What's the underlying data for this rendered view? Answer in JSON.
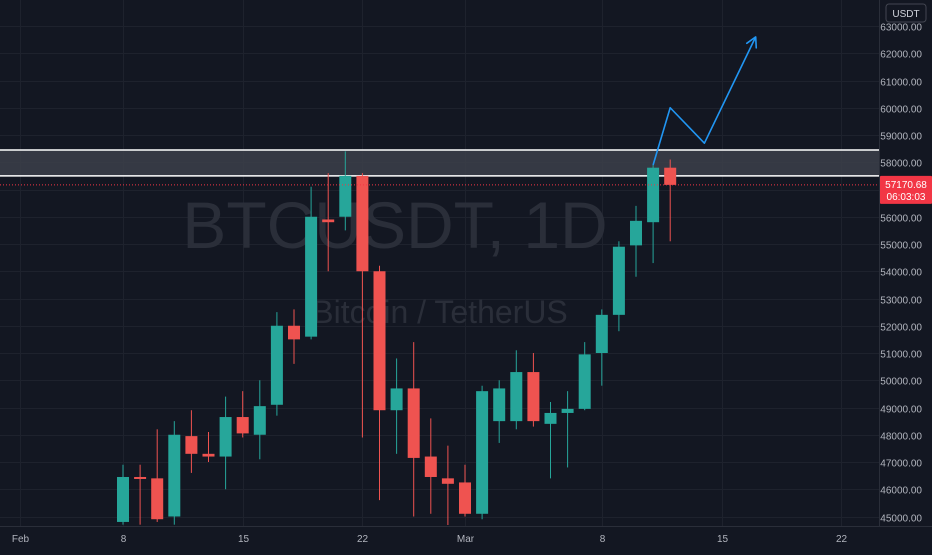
{
  "chart_data": {
    "type": "candlestick",
    "watermark_symbol": "BTCUSDT, 1D",
    "watermark_name": "Bitcoin / TetherUS",
    "currency_label": "USDT",
    "last_price": "57170.68",
    "countdown": "06:03:03",
    "y_ticks": [
      45000,
      46000,
      47000,
      48000,
      49000,
      50000,
      51000,
      52000,
      53000,
      54000,
      55000,
      56000,
      57000,
      58000,
      59000,
      60000,
      61000,
      62000,
      63000
    ],
    "y_tick_labels": [
      "45000.00",
      "46000.00",
      "47000.00",
      "48000.00",
      "49000.00",
      "50000.00",
      "51000.00",
      "52000.00",
      "53000.00",
      "54000.00",
      "55000.00",
      "56000.00",
      "57000.00",
      "58000.00",
      "59000.00",
      "60000.00",
      "61000.00",
      "62000.00",
      "63000.00"
    ],
    "x_labels": [
      {
        "label": "Feb",
        "index": -6
      },
      {
        "label": "8",
        "index": 0
      },
      {
        "label": "15",
        "index": 7
      },
      {
        "label": "22",
        "index": 14
      },
      {
        "label": "Mar",
        "index": 20
      },
      {
        "label": "8",
        "index": 28
      },
      {
        "label": "15",
        "index": 35
      },
      {
        "label": "22",
        "index": 42
      }
    ],
    "candles": [
      {
        "o": 44800,
        "h": 46900,
        "l": 44700,
        "c": 46450
      },
      {
        "o": 46450,
        "h": 46900,
        "l": 44700,
        "c": 46400
      },
      {
        "o": 46400,
        "h": 48200,
        "l": 44800,
        "c": 44900
      },
      {
        "o": 45000,
        "h": 48500,
        "l": 44700,
        "c": 48000
      },
      {
        "o": 47950,
        "h": 48900,
        "l": 46600,
        "c": 47300
      },
      {
        "o": 47300,
        "h": 48100,
        "l": 47000,
        "c": 47200
      },
      {
        "o": 47200,
        "h": 49400,
        "l": 46000,
        "c": 48650
      },
      {
        "o": 48650,
        "h": 49600,
        "l": 47900,
        "c": 48050
      },
      {
        "o": 48000,
        "h": 50000,
        "l": 47100,
        "c": 49050
      },
      {
        "o": 49100,
        "h": 52500,
        "l": 48700,
        "c": 52000
      },
      {
        "o": 52000,
        "h": 52600,
        "l": 50600,
        "c": 51500
      },
      {
        "o": 51600,
        "h": 57100,
        "l": 51500,
        "c": 56000
      },
      {
        "o": 55900,
        "h": 57600,
        "l": 54000,
        "c": 55800
      },
      {
        "o": 56000,
        "h": 58400,
        "l": 55500,
        "c": 57500
      },
      {
        "o": 57500,
        "h": 57600,
        "l": 47900,
        "c": 54000
      },
      {
        "o": 54000,
        "h": 54200,
        "l": 45600,
        "c": 48900
      },
      {
        "o": 48900,
        "h": 50800,
        "l": 47300,
        "c": 49700
      },
      {
        "o": 49700,
        "h": 51400,
        "l": 45000,
        "c": 47150
      },
      {
        "o": 47200,
        "h": 48600,
        "l": 45100,
        "c": 46450
      },
      {
        "o": 46400,
        "h": 47600,
        "l": 44500,
        "c": 46200
      },
      {
        "o": 46250,
        "h": 46900,
        "l": 45000,
        "c": 45100
      },
      {
        "o": 45100,
        "h": 49800,
        "l": 44900,
        "c": 49600
      },
      {
        "o": 48500,
        "h": 50000,
        "l": 47700,
        "c": 49700
      },
      {
        "o": 48500,
        "h": 51100,
        "l": 48200,
        "c": 50300
      },
      {
        "o": 50300,
        "h": 51000,
        "l": 48300,
        "c": 48500
      },
      {
        "o": 48400,
        "h": 49200,
        "l": 46400,
        "c": 48800
      },
      {
        "o": 48800,
        "h": 49600,
        "l": 46800,
        "c": 48950
      },
      {
        "o": 48950,
        "h": 51400,
        "l": 48900,
        "c": 50950
      },
      {
        "o": 51000,
        "h": 52600,
        "l": 49800,
        "c": 52400
      },
      {
        "o": 52400,
        "h": 55100,
        "l": 51800,
        "c": 54900
      },
      {
        "o": 54950,
        "h": 56400,
        "l": 53800,
        "c": 55850
      },
      {
        "o": 55800,
        "h": 57900,
        "l": 54300,
        "c": 57800
      },
      {
        "o": 57800,
        "h": 58100,
        "l": 55100,
        "c": 57170
      }
    ],
    "resistance_zone": [
      57500,
      58450
    ],
    "projection_path": [
      {
        "index": 31,
        "value": 57900
      },
      {
        "index": 32,
        "value": 60000
      },
      {
        "index": 34,
        "value": 58700
      },
      {
        "index": 37,
        "value": 62600
      }
    ],
    "colors": {
      "background": "#131722",
      "up": "#26a69a",
      "down": "#ef5350",
      "grid": "#1e222d",
      "axis_text": "#b2b5be",
      "zone_fill": "#3c3f4a",
      "zone_line": "#ffffff",
      "projection": "#2196f3",
      "price_label": "#f23645"
    }
  }
}
